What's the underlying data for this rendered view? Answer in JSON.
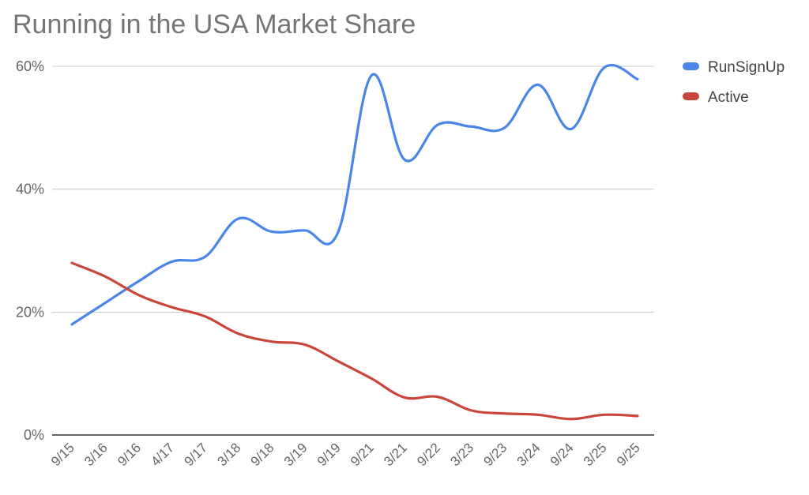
{
  "chart_data": {
    "type": "line",
    "title": "Running in the USA Market Share",
    "xlabel": "",
    "ylabel": "",
    "ylim": [
      0,
      60
    ],
    "yticks": [
      "0%",
      "20%",
      "40%",
      "60%"
    ],
    "categories": [
      "9/15",
      "3/16",
      "9/16",
      "4/17",
      "9/17",
      "3/18",
      "9/18",
      "3/19",
      "9/19",
      "9/21",
      "3/21",
      "9/22",
      "3/23",
      "9/23",
      "3/24",
      "9/24",
      "3/25",
      "9/25"
    ],
    "series": [
      {
        "name": "RunSignUp",
        "color": "#4a86e8",
        "values": [
          18,
          21.5,
          25,
          28.2,
          29,
          35.2,
          33.1,
          33.3,
          33,
          58.5,
          44.8,
          50.5,
          50.2,
          50,
          57,
          49.8,
          59.8,
          57.9
        ]
      },
      {
        "name": "Active",
        "color": "#c9473a",
        "values": [
          28,
          25.8,
          22.8,
          20.8,
          19.3,
          16.5,
          15.2,
          14.7,
          12,
          9.2,
          6.1,
          6.2,
          4,
          3.5,
          3.3,
          2.6,
          3.3,
          3.1
        ]
      }
    ],
    "legend_position": "right",
    "grid": true
  }
}
